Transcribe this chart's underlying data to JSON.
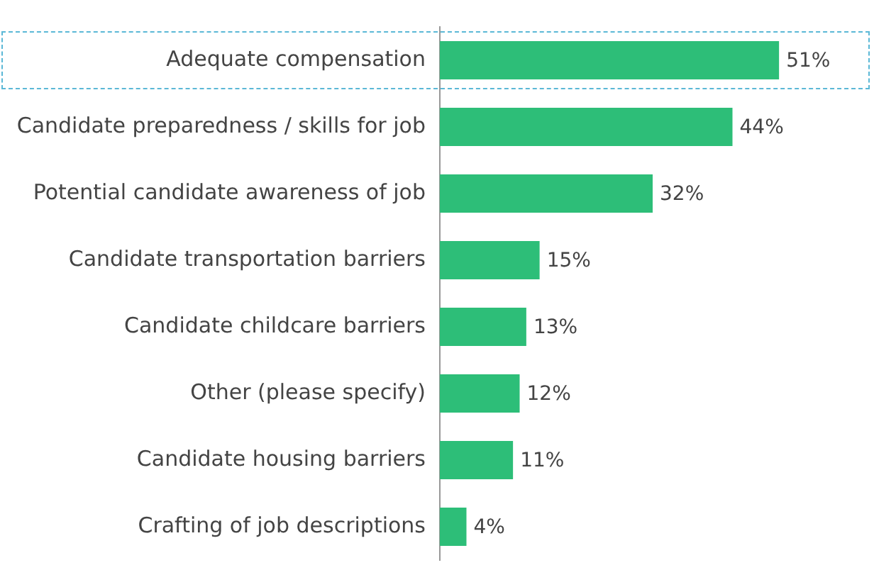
{
  "chart_data": {
    "type": "bar",
    "orientation": "horizontal",
    "categories": [
      "Adequate compensation",
      "Candidate preparedness / skills for job",
      "Potential candidate awareness of job",
      "Candidate transportation barriers",
      "Candidate childcare barriers",
      "Other (please specify)",
      "Candidate housing barriers",
      "Crafting of job descriptions"
    ],
    "values": [
      51,
      44,
      32,
      15,
      13,
      12,
      11,
      4
    ],
    "value_labels": [
      "51%",
      "44%",
      "32%",
      "15%",
      "13%",
      "12%",
      "11%",
      "4%"
    ],
    "color": "#2dbe78"
  }
}
